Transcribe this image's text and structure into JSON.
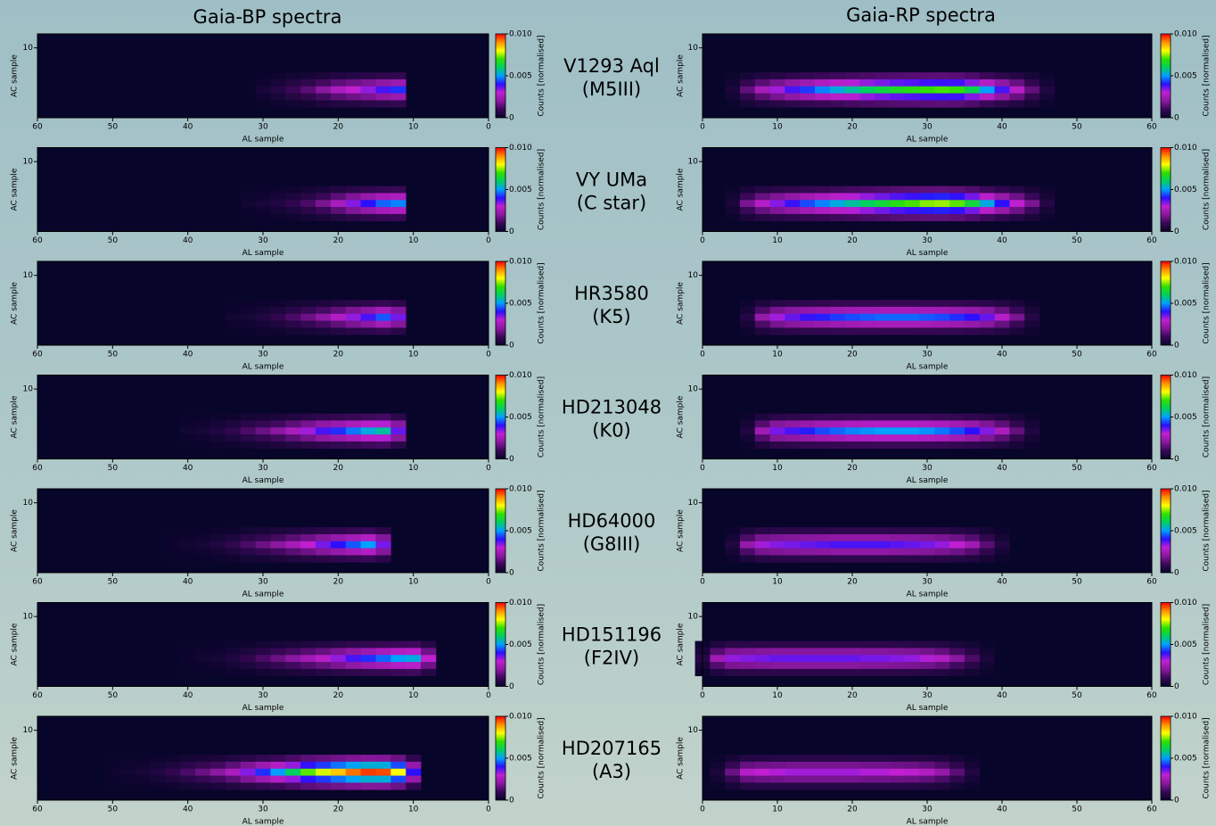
{
  "columns": [
    "Gaia-BP spectra",
    "Gaia-RP spectra"
  ],
  "stars": [
    {
      "name": "V1293 Aql",
      "class": "(M5III)"
    },
    {
      "name": "VY UMa",
      "class": "(C star)"
    },
    {
      "name": "HR3580",
      "class": "(K5)"
    },
    {
      "name": "HD213048",
      "class": "(K0)"
    },
    {
      "name": "HD64000",
      "class": "(G8III)"
    },
    {
      "name": "HD151196",
      "class": "(F2IV)"
    },
    {
      "name": "HD207165",
      "class": "(A3)"
    }
  ],
  "chart_data": [
    {
      "type": "heatmap",
      "xlabel": "AL sample",
      "ylabel": "AC sample",
      "xlim": [
        60,
        0
      ],
      "xticks": [
        60,
        50,
        40,
        30,
        20,
        10,
        0
      ],
      "ylim": [
        0,
        12
      ],
      "yticks": [
        10
      ],
      "zlim": [
        0,
        0.01
      ],
      "zticks": [
        0,
        0.005,
        {
          "value": 0.01,
          "label": "0.010"
        }
      ],
      "zlabel": "Counts [normalised]",
      "colormap": [
        "#08052a",
        "#3a0858",
        "#8a18a0",
        "#c020d0",
        "#2a10ff",
        "#00a0ff",
        "#00d060",
        "#30e000",
        "#ffff00",
        "#ff9000",
        "#ff0000"
      ],
      "x": [
        30,
        28,
        26,
        24,
        22,
        20,
        18,
        16,
        14,
        12
      ],
      "values": [
        0.0003,
        0.0006,
        0.001,
        0.0014,
        0.002,
        0.0026,
        0.003,
        0.0033,
        0.0038,
        0.0042
      ]
    },
    {
      "type": "heatmap",
      "xlabel": "AL sample",
      "ylabel": "AC sample",
      "xlim": [
        60,
        0
      ],
      "xticks": [
        60,
        50,
        40,
        30,
        20,
        10,
        0
      ],
      "ylim": [
        0,
        12
      ],
      "yticks": [
        10
      ],
      "zlim": [
        0,
        0.01
      ],
      "zticks": [
        0,
        0.005,
        {
          "value": 0.01,
          "label": "0.010"
        }
      ],
      "zlabel": "Counts [normalised]",
      "colormap": [
        "#08052a",
        "#3a0858",
        "#8a18a0",
        "#c020d0",
        "#2a10ff",
        "#00a0ff",
        "#00d060",
        "#30e000",
        "#ffff00",
        "#ff9000",
        "#ff0000"
      ],
      "x": [
        32,
        30,
        28,
        26,
        24,
        22,
        20,
        18,
        16,
        14,
        12
      ],
      "values": [
        0.0002,
        0.0003,
        0.0005,
        0.0008,
        0.0012,
        0.0018,
        0.0026,
        0.0034,
        0.004,
        0.0046,
        0.0048
      ]
    },
    {
      "type": "heatmap",
      "xlabel": "AL sample",
      "ylabel": "AC sample",
      "xlim": [
        60,
        0
      ],
      "xticks": [
        60,
        50,
        40,
        30,
        20,
        10,
        0
      ],
      "ylim": [
        0,
        12
      ],
      "yticks": [
        10
      ],
      "zlim": [
        0,
        0.01
      ],
      "zticks": [
        0,
        0.005,
        {
          "value": 0.01,
          "label": "0.010"
        }
      ],
      "zlabel": "Counts [normalised]",
      "colormap": [
        "#08052a",
        "#3a0858",
        "#8a18a0",
        "#c020d0",
        "#2a10ff",
        "#00a0ff",
        "#00d060",
        "#30e000",
        "#ffff00",
        "#ff9000",
        "#ff0000"
      ],
      "x": [
        34,
        32,
        30,
        28,
        26,
        24,
        22,
        20,
        18,
        16,
        14,
        12
      ],
      "values": [
        0.0002,
        0.0003,
        0.0005,
        0.0008,
        0.0012,
        0.0016,
        0.0021,
        0.0027,
        0.0033,
        0.0038,
        0.0045,
        0.0035
      ]
    },
    {
      "type": "heatmap",
      "xlabel": "AL sample",
      "ylabel": "AC sample",
      "xlim": [
        60,
        0
      ],
      "xticks": [
        60,
        50,
        40,
        30,
        20,
        10,
        0
      ],
      "ylim": [
        0,
        12
      ],
      "yticks": [
        10
      ],
      "zlim": [
        0,
        0.01
      ],
      "zticks": [
        0,
        0.005,
        {
          "value": 0.01,
          "label": "0.010"
        }
      ],
      "zlabel": "Counts [normalised]",
      "colormap": [
        "#08052a",
        "#3a0858",
        "#8a18a0",
        "#c020d0",
        "#2a10ff",
        "#00a0ff",
        "#00d060",
        "#30e000",
        "#ffff00",
        "#ff9000",
        "#ff0000"
      ],
      "x": [
        40,
        38,
        36,
        34,
        32,
        30,
        28,
        26,
        24,
        22,
        20,
        18,
        16,
        14,
        12
      ],
      "values": [
        0.0002,
        0.0003,
        0.0005,
        0.0008,
        0.0012,
        0.0016,
        0.002,
        0.0026,
        0.0032,
        0.0038,
        0.0042,
        0.0047,
        0.0052,
        0.0056,
        0.0036
      ]
    },
    {
      "type": "heatmap",
      "xlabel": "AL sample",
      "ylabel": "AC sample",
      "xlim": [
        60,
        0
      ],
      "xticks": [
        60,
        50,
        40,
        30,
        20,
        10,
        0
      ],
      "ylim": [
        0,
        12
      ],
      "yticks": [
        10
      ],
      "zlim": [
        0,
        0.01
      ],
      "zticks": [
        0,
        0.005,
        {
          "value": 0.01,
          "label": "0.010"
        }
      ],
      "zlabel": "Counts [normalised]",
      "colormap": [
        "#08052a",
        "#3a0858",
        "#8a18a0",
        "#c020d0",
        "#2a10ff",
        "#00a0ff",
        "#00d060",
        "#30e000",
        "#ffff00",
        "#ff9000",
        "#ff0000"
      ],
      "x": [
        42,
        40,
        38,
        36,
        34,
        32,
        30,
        28,
        26,
        24,
        22,
        20,
        18,
        16,
        14
      ],
      "values": [
        0.0001,
        0.0002,
        0.0003,
        0.0005,
        0.0008,
        0.0012,
        0.0016,
        0.002,
        0.0025,
        0.003,
        0.0035,
        0.004,
        0.0045,
        0.005,
        0.0035
      ]
    },
    {
      "type": "heatmap",
      "xlabel": "AL sample",
      "ylabel": "AC sample",
      "xlim": [
        60,
        0
      ],
      "xticks": [
        60,
        50,
        40,
        30,
        20,
        10,
        0
      ],
      "ylim": [
        0,
        12
      ],
      "yticks": [
        10
      ],
      "zlim": [
        0,
        0.01
      ],
      "zticks": [
        0,
        0.005,
        {
          "value": 0.01,
          "label": "0.010"
        }
      ],
      "zlabel": "Counts [normalised]",
      "colormap": [
        "#08052a",
        "#3a0858",
        "#8a18a0",
        "#c020d0",
        "#2a10ff",
        "#00a0ff",
        "#00d060",
        "#30e000",
        "#ffff00",
        "#ff9000",
        "#ff0000"
      ],
      "x": [
        40,
        38,
        36,
        34,
        32,
        30,
        28,
        26,
        24,
        22,
        20,
        18,
        16,
        14,
        12,
        10,
        8
      ],
      "values": [
        0.0001,
        0.0002,
        0.0003,
        0.0005,
        0.0008,
        0.0012,
        0.0016,
        0.002,
        0.0024,
        0.0028,
        0.0033,
        0.0038,
        0.0042,
        0.0046,
        0.005,
        0.0052,
        0.003
      ]
    },
    {
      "type": "heatmap",
      "xlabel": "AL sample",
      "ylabel": "AC sample",
      "xlim": [
        60,
        0
      ],
      "xticks": [
        60,
        50,
        40,
        30,
        20,
        10,
        0
      ],
      "ylim": [
        0,
        12
      ],
      "yticks": [
        10
      ],
      "zlim": [
        0,
        0.01
      ],
      "zticks": [
        0,
        0.005,
        {
          "value": 0.01,
          "label": "0.010"
        }
      ],
      "zlabel": "Counts [normalised]",
      "colormap": [
        "#08052a",
        "#3a0858",
        "#8a18a0",
        "#c020d0",
        "#2a10ff",
        "#00a0ff",
        "#00d060",
        "#30e000",
        "#ffff00",
        "#ff9000",
        "#ff0000"
      ],
      "x": [
        50,
        48,
        46,
        44,
        42,
        40,
        38,
        36,
        34,
        32,
        30,
        28,
        26,
        24,
        22,
        20,
        18,
        16,
        14,
        12,
        10
      ],
      "values": [
        0.0001,
        0.0002,
        0.0003,
        0.0005,
        0.0008,
        0.0012,
        0.0016,
        0.002,
        0.0026,
        0.0034,
        0.0042,
        0.005,
        0.006,
        0.0072,
        0.0078,
        0.0085,
        0.0092,
        0.0096,
        0.0095,
        0.008,
        0.004
      ]
    },
    {
      "type": "heatmap",
      "xlabel": "AL sample",
      "ylabel": "AC sample",
      "xlim": [
        0,
        60
      ],
      "xticks": [
        0,
        10,
        20,
        30,
        40,
        50,
        60
      ],
      "ylim": [
        0,
        12
      ],
      "yticks": [
        10
      ],
      "zlim": [
        0,
        0.01
      ],
      "zticks": [
        0,
        0.005,
        {
          "value": 0.01,
          "label": "0.010"
        }
      ],
      "zlabel": "Counts [normalised]",
      "colormap": [
        "#08052a",
        "#3a0858",
        "#8a18a0",
        "#c020d0",
        "#2a10ff",
        "#00a0ff",
        "#00d060",
        "#30e000",
        "#ffff00",
        "#ff9000",
        "#ff0000"
      ],
      "x": [
        4,
        6,
        8,
        10,
        12,
        14,
        16,
        18,
        20,
        22,
        24,
        26,
        28,
        30,
        32,
        34,
        36,
        38,
        40,
        42,
        44,
        46
      ],
      "values": [
        0.0004,
        0.0015,
        0.0025,
        0.0032,
        0.0038,
        0.0043,
        0.0048,
        0.0052,
        0.0056,
        0.006,
        0.0063,
        0.0066,
        0.0068,
        0.007,
        0.0071,
        0.007,
        0.0062,
        0.005,
        0.0038,
        0.0028,
        0.0015,
        0.0005
      ]
    },
    {
      "type": "heatmap",
      "xlabel": "AL sample",
      "ylabel": "AC sample",
      "xlim": [
        0,
        60
      ],
      "xticks": [
        0,
        10,
        20,
        30,
        40,
        50,
        60
      ],
      "ylim": [
        0,
        12
      ],
      "yticks": [
        10
      ],
      "zlim": [
        0,
        0.01
      ],
      "zticks": [
        0,
        0.005,
        {
          "value": 0.01,
          "label": "0.010"
        }
      ],
      "zlabel": "Counts [normalised]",
      "colormap": [
        "#08052a",
        "#3a0858",
        "#8a18a0",
        "#c020d0",
        "#2a10ff",
        "#00a0ff",
        "#00d060",
        "#30e000",
        "#ffff00",
        "#ff9000",
        "#ff0000"
      ],
      "x": [
        4,
        6,
        8,
        10,
        12,
        14,
        16,
        18,
        20,
        22,
        24,
        26,
        28,
        30,
        32,
        34,
        36,
        38,
        40,
        42,
        44,
        46
      ],
      "values": [
        0.0004,
        0.0018,
        0.0028,
        0.0034,
        0.0039,
        0.0044,
        0.0048,
        0.0052,
        0.0056,
        0.006,
        0.0064,
        0.0068,
        0.0071,
        0.0074,
        0.0075,
        0.0072,
        0.0064,
        0.0052,
        0.004,
        0.003,
        0.0018,
        0.0006
      ]
    },
    {
      "type": "heatmap",
      "xlabel": "AL sample",
      "ylabel": "AC sample",
      "xlim": [
        0,
        60
      ],
      "xticks": [
        0,
        10,
        20,
        30,
        40,
        50,
        60
      ],
      "ylim": [
        0,
        12
      ],
      "yticks": [
        10
      ],
      "zlim": [
        0,
        0.01
      ],
      "zticks": [
        0,
        0.005,
        {
          "value": 0.01,
          "label": "0.010"
        }
      ],
      "zlabel": "Counts [normalised]",
      "colormap": [
        "#08052a",
        "#3a0858",
        "#8a18a0",
        "#c020d0",
        "#2a10ff",
        "#00a0ff",
        "#00d060",
        "#30e000",
        "#ffff00",
        "#ff9000",
        "#ff0000"
      ],
      "x": [
        6,
        8,
        10,
        12,
        14,
        16,
        18,
        20,
        22,
        24,
        26,
        28,
        30,
        32,
        34,
        36,
        38,
        40,
        42,
        44
      ],
      "values": [
        0.0006,
        0.0022,
        0.0032,
        0.0036,
        0.0039,
        0.0041,
        0.0043,
        0.0044,
        0.0045,
        0.0046,
        0.0046,
        0.0046,
        0.0045,
        0.0044,
        0.0042,
        0.004,
        0.0036,
        0.0028,
        0.0018,
        0.0006
      ]
    },
    {
      "type": "heatmap",
      "xlabel": "AL sample",
      "ylabel": "AC sample",
      "xlim": [
        0,
        60
      ],
      "xticks": [
        0,
        10,
        20,
        30,
        40,
        50,
        60
      ],
      "ylim": [
        0,
        12
      ],
      "yticks": [
        10
      ],
      "zlim": [
        0,
        0.01
      ],
      "zticks": [
        0,
        0.005,
        {
          "value": 0.01,
          "label": "0.010"
        }
      ],
      "zlabel": "Counts [normalised]",
      "colormap": [
        "#08052a",
        "#3a0858",
        "#8a18a0",
        "#c020d0",
        "#2a10ff",
        "#00a0ff",
        "#00d060",
        "#30e000",
        "#ffff00",
        "#ff9000",
        "#ff0000"
      ],
      "x": [
        6,
        8,
        10,
        12,
        14,
        16,
        18,
        20,
        22,
        24,
        26,
        28,
        30,
        32,
        34,
        36,
        38,
        40,
        42,
        44
      ],
      "values": [
        0.0005,
        0.0024,
        0.0035,
        0.0038,
        0.0041,
        0.0044,
        0.0046,
        0.0048,
        0.0049,
        0.005,
        0.005,
        0.005,
        0.0049,
        0.0047,
        0.0044,
        0.004,
        0.0034,
        0.0026,
        0.0015,
        0.0005
      ]
    },
    {
      "type": "heatmap",
      "xlabel": "AL sample",
      "ylabel": "AC sample",
      "xlim": [
        0,
        60
      ],
      "xticks": [
        0,
        10,
        20,
        30,
        40,
        50,
        60
      ],
      "ylim": [
        0,
        12
      ],
      "yticks": [
        10
      ],
      "zlim": [
        0,
        0.01
      ],
      "zticks": [
        0,
        0.005,
        {
          "value": 0.01,
          "label": "0.010"
        }
      ],
      "zlabel": "Counts [normalised]",
      "colormap": [
        "#08052a",
        "#3a0858",
        "#8a18a0",
        "#c020d0",
        "#2a10ff",
        "#00a0ff",
        "#00d060",
        "#30e000",
        "#ffff00",
        "#ff9000",
        "#ff0000"
      ],
      "x": [
        4,
        6,
        8,
        10,
        12,
        14,
        16,
        18,
        20,
        22,
        24,
        26,
        28,
        30,
        32,
        34,
        36,
        38,
        40
      ],
      "values": [
        0.0005,
        0.0022,
        0.0032,
        0.0034,
        0.0035,
        0.0036,
        0.0037,
        0.0038,
        0.0038,
        0.0038,
        0.0038,
        0.0037,
        0.0036,
        0.0035,
        0.0033,
        0.003,
        0.0024,
        0.0014,
        0.0005
      ]
    },
    {
      "type": "heatmap",
      "xlabel": "AL sample",
      "ylabel": "AC sample",
      "xlim": [
        0,
        60
      ],
      "xticks": [
        0,
        10,
        20,
        30,
        40,
        50,
        60
      ],
      "ylim": [
        0,
        12
      ],
      "yticks": [
        10
      ],
      "zlim": [
        0,
        0.01
      ],
      "zticks": [
        0,
        0.005,
        {
          "value": 0.01,
          "label": "0.010"
        }
      ],
      "zlabel": "Counts [normalised]",
      "colormap": [
        "#08052a",
        "#3a0858",
        "#8a18a0",
        "#c020d0",
        "#2a10ff",
        "#00a0ff",
        "#00d060",
        "#30e000",
        "#ffff00",
        "#ff9000",
        "#ff0000"
      ],
      "x": [
        0,
        2,
        4,
        6,
        8,
        10,
        12,
        14,
        16,
        18,
        20,
        22,
        24,
        26,
        28,
        30,
        32,
        34,
        36,
        38
      ],
      "values": [
        0.0006,
        0.0024,
        0.0033,
        0.0034,
        0.0035,
        0.0036,
        0.0036,
        0.0036,
        0.0036,
        0.0036,
        0.0036,
        0.0035,
        0.0035,
        0.0034,
        0.0033,
        0.0031,
        0.0027,
        0.002,
        0.0012,
        0.0004
      ]
    },
    {
      "type": "heatmap",
      "xlabel": "AL sample",
      "ylabel": "AC sample",
      "xlim": [
        0,
        60
      ],
      "xticks": [
        0,
        10,
        20,
        30,
        40,
        50,
        60
      ],
      "ylim": [
        0,
        12
      ],
      "yticks": [
        10
      ],
      "zlim": [
        0,
        0.01
      ],
      "zticks": [
        0,
        0.005,
        {
          "value": 0.01,
          "label": "0.010"
        }
      ],
      "zlabel": "Counts [normalised]",
      "colormap": [
        "#08052a",
        "#3a0858",
        "#8a18a0",
        "#c020d0",
        "#2a10ff",
        "#00a0ff",
        "#00d060",
        "#30e000",
        "#ffff00",
        "#ff9000",
        "#ff0000"
      ],
      "x": [
        2,
        4,
        6,
        8,
        10,
        12,
        14,
        16,
        18,
        20,
        22,
        24,
        26,
        28,
        30,
        32,
        34,
        36
      ],
      "values": [
        0.0004,
        0.0016,
        0.0028,
        0.003,
        0.0031,
        0.0032,
        0.0032,
        0.0032,
        0.0032,
        0.0032,
        0.0031,
        0.0031,
        0.003,
        0.0029,
        0.0027,
        0.0022,
        0.0014,
        0.0005
      ]
    }
  ]
}
